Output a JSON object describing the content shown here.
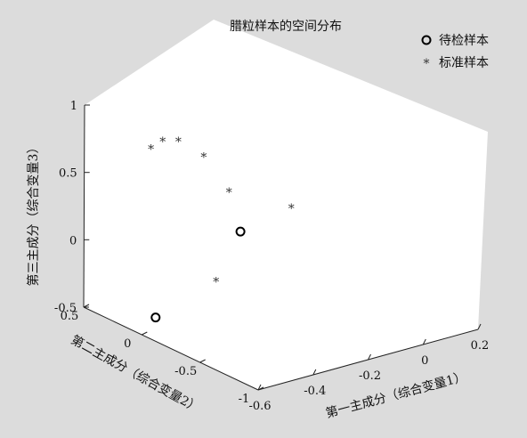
{
  "chart_data": {
    "type": "scatter",
    "projection": "3d",
    "title": "腊粒样本的空间分布",
    "xlabel": "第一主成分（综合变量1）",
    "ylabel": "第二主成分（综合变量2）",
    "zlabel": "第三主成分（综合变量3）",
    "xlim": [
      -0.6,
      0.2
    ],
    "ylim": [
      -1,
      0.5
    ],
    "zlim": [
      -0.5,
      1
    ],
    "x_ticks": [
      "-0.6",
      "-0.4",
      "-0.2",
      "0",
      "0.2"
    ],
    "y_ticks": [
      "-1",
      "-0.5",
      "0",
      "0.5"
    ],
    "z_ticks": [
      "-0.5",
      "0",
      "0.5",
      "1"
    ],
    "legend_position": "top-right",
    "grid": false,
    "series": [
      {
        "name": "待检样本",
        "marker": "circle-open",
        "color": "#000000",
        "points": [
          {
            "x": -0.2,
            "y": 0.1,
            "z": 0.0
          },
          {
            "x": -0.55,
            "y": 0.0,
            "z": -0.4
          }
        ]
      },
      {
        "name": "标准样本",
        "marker": "asterisk",
        "color": "#333333",
        "points": [
          {
            "x": -0.4,
            "y": 0.3,
            "z": 0.7
          },
          {
            "x": -0.4,
            "y": 0.4,
            "z": 0.6
          },
          {
            "x": -0.3,
            "y": 0.4,
            "z": 0.6
          },
          {
            "x": -0.25,
            "y": 0.3,
            "z": 0.5
          },
          {
            "x": -0.2,
            "y": 0.2,
            "z": 0.25
          },
          {
            "x": -0.1,
            "y": -0.1,
            "z": 0.2
          },
          {
            "x": -0.5,
            "y": -0.4,
            "z": 0.0
          }
        ]
      }
    ]
  }
}
